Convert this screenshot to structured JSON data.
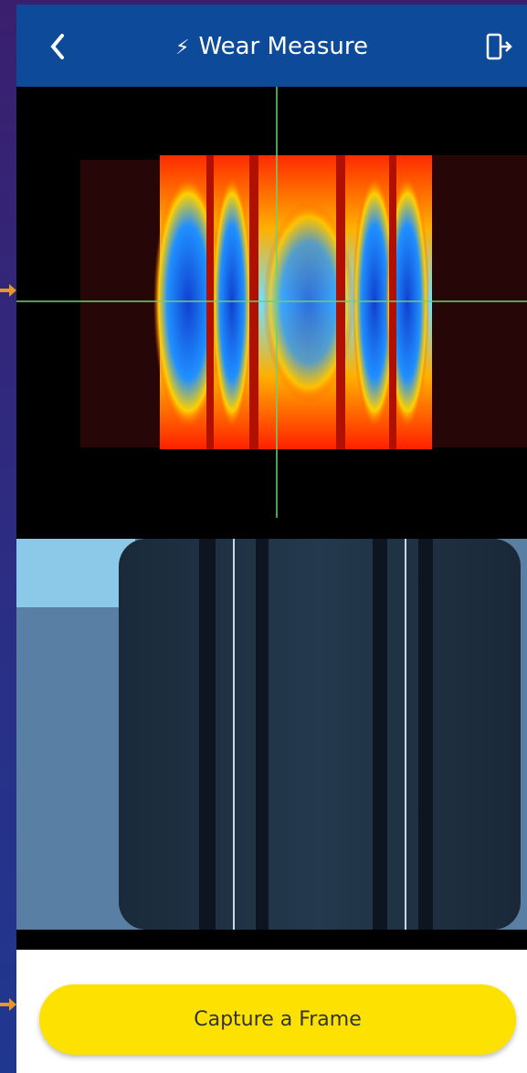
{
  "header": {
    "title": "Wear Measure"
  },
  "button": {
    "label": "Capture a Frame"
  }
}
